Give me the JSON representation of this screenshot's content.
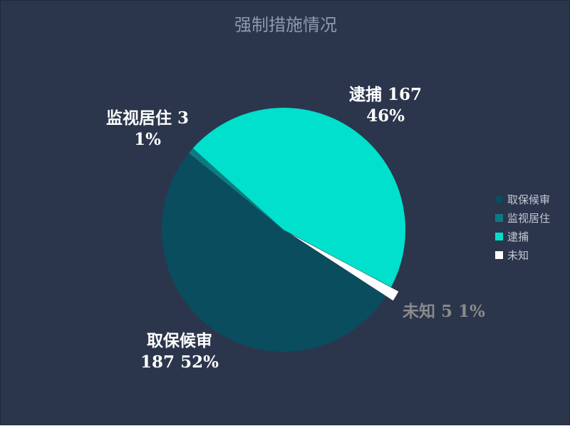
{
  "title": "强制措施情况",
  "colors": {
    "background": "#2b364c",
    "qubao": "#0a4d5e",
    "jianshi": "#0b7b80",
    "daibu": "#00e0cc",
    "weizhi": "#ffffff"
  },
  "chart_data": {
    "type": "pie",
    "title": "强制措施情况",
    "slices": [
      {
        "name": "取保候审",
        "value": 187,
        "percent": "52%",
        "color": "#0a4d5e"
      },
      {
        "name": "监视居住",
        "value": 3,
        "percent": "1%",
        "color": "#0b7b80"
      },
      {
        "name": "逮捕",
        "value": 167,
        "percent": "46%",
        "color": "#00e0cc"
      },
      {
        "name": "未知",
        "value": 5,
        "percent": "1%",
        "color": "#ffffff"
      }
    ],
    "legend_position": "right",
    "labels": {
      "qubao": {
        "line1": "取保候审",
        "line2": "187 52%"
      },
      "jianshi": {
        "line1": "监视居住 3",
        "line2": "1%"
      },
      "daibu": {
        "line1": "逮捕 167",
        "line2": "46%"
      },
      "weizhi": {
        "line1": "未知 5 1%"
      }
    }
  }
}
